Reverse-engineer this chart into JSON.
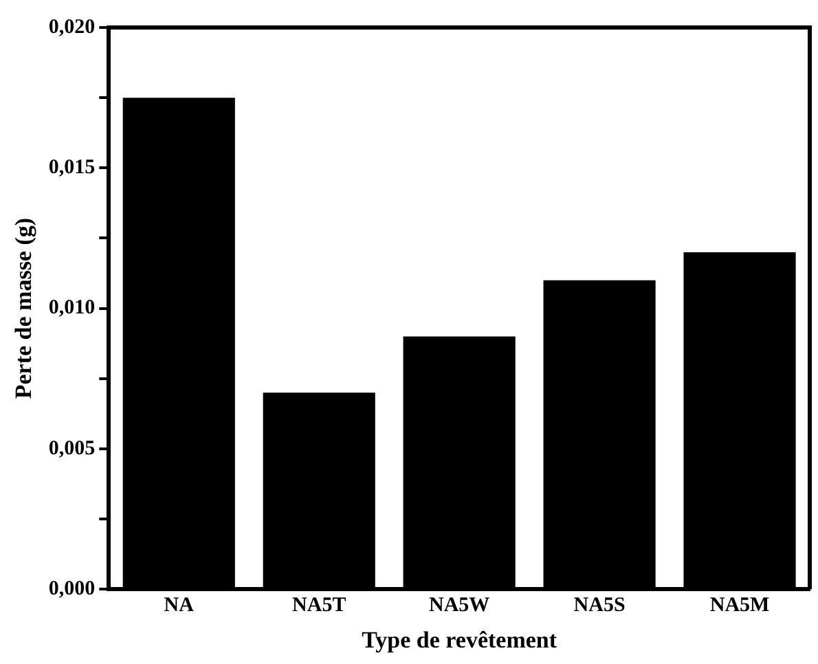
{
  "chart_data": {
    "type": "bar",
    "xlabel": "Type de revêtement",
    "ylabel": "Perte de masse (g)",
    "categories": [
      "NA",
      "NA5T",
      "NA5W",
      "NA5S",
      "NA5M"
    ],
    "values": [
      0.0175,
      0.007,
      0.009,
      0.011,
      0.012
    ],
    "color": "#000000",
    "ylim": [
      0,
      0.02
    ],
    "yticks": [
      {
        "value": 0,
        "label": "0,000"
      },
      {
        "value": 0.0025,
        "label": null
      },
      {
        "value": 0.005,
        "label": "0,005"
      },
      {
        "value": 0.0075,
        "label": null
      },
      {
        "value": 0.01,
        "label": "0,010"
      },
      {
        "value": 0.0125,
        "label": null
      },
      {
        "value": 0.015,
        "label": "0,015"
      },
      {
        "value": 0.0175,
        "label": null
      },
      {
        "value": 0.02,
        "label": "0,020"
      }
    ],
    "grid": false,
    "legend": false
  }
}
